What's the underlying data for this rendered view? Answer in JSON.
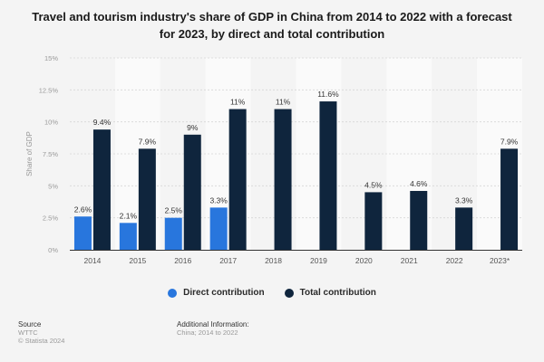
{
  "chart_data": {
    "type": "bar",
    "title": "Travel and tourism industry's share of GDP in China from 2014 to 2022 with a forecast for 2023, by direct and total contribution",
    "title_lines": [
      "Travel and tourism industry's share of GDP in China from 2014 to 2022 with a forecast",
      "for 2023, by direct and total contribution"
    ],
    "xlabel": "",
    "ylabel": "Share of GDP",
    "ylim": [
      0,
      15
    ],
    "yticks": [
      0,
      2.5,
      5,
      7.5,
      10,
      12.5,
      15
    ],
    "ytick_labels": [
      "0%",
      "2.5%",
      "5%",
      "7.5%",
      "10%",
      "12.5%",
      "15%"
    ],
    "grid": true,
    "legend_position": "bottom",
    "categories": [
      "2014",
      "2015",
      "2016",
      "2017",
      "2018",
      "2019",
      "2020",
      "2021",
      "2022",
      "2023*"
    ],
    "series": [
      {
        "name": "Direct contribution",
        "color": "#2876dd",
        "values": [
          2.6,
          2.1,
          2.5,
          3.3,
          null,
          null,
          null,
          null,
          null,
          null
        ],
        "labels": [
          "2.6%",
          "2.1%",
          "2.5%",
          "3.3%",
          null,
          null,
          null,
          null,
          null,
          null
        ]
      },
      {
        "name": "Total contribution",
        "color": "#0f253d",
        "values": [
          9.4,
          7.9,
          9,
          11,
          11,
          11.6,
          4.5,
          4.6,
          3.3,
          7.9
        ],
        "labels": [
          "9.4%",
          "7.9%",
          "9%",
          "11%",
          "11%",
          "11.6%",
          "4.5%",
          "4.6%",
          "3.3%",
          "7.9%"
        ]
      }
    ]
  },
  "legend": {
    "items": [
      {
        "label": "Direct contribution",
        "color": "#2876dd"
      },
      {
        "label": "Total contribution",
        "color": "#0f253d"
      }
    ]
  },
  "footer": {
    "source_heading": "Source",
    "source_lines": [
      "WTTC",
      "© Statista 2024"
    ],
    "additional_heading": "Additional Information:",
    "additional_lines": [
      "China; 2014 to 2022"
    ]
  }
}
